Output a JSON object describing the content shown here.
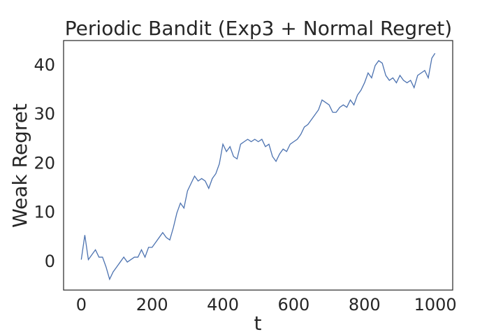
{
  "chart_data": {
    "type": "line",
    "title": "Periodic Bandit (Exp3 + Normal Regret)",
    "x_label": "t",
    "y_label": "Weak Regret",
    "x": [
      0,
      10,
      20,
      30,
      40,
      50,
      60,
      70,
      80,
      90,
      100,
      110,
      120,
      130,
      140,
      150,
      160,
      170,
      180,
      190,
      200,
      210,
      220,
      230,
      240,
      250,
      260,
      270,
      280,
      290,
      300,
      310,
      320,
      330,
      340,
      350,
      360,
      370,
      380,
      390,
      400,
      410,
      420,
      430,
      440,
      450,
      460,
      470,
      480,
      490,
      500,
      510,
      520,
      530,
      540,
      550,
      560,
      570,
      580,
      590,
      600,
      610,
      620,
      630,
      640,
      650,
      660,
      670,
      680,
      690,
      700,
      710,
      720,
      730,
      740,
      750,
      760,
      770,
      780,
      790,
      800,
      810,
      820,
      830,
      840,
      850,
      860,
      870,
      880,
      890,
      900,
      910,
      920,
      930,
      940,
      950,
      960,
      970,
      980,
      990,
      999
    ],
    "series": [
      {
        "name": "Weak Regret",
        "color": "#4c72b0",
        "values": [
          0.5,
          5.5,
          0.5,
          1.5,
          2.5,
          1,
          1,
          -1,
          -3.5,
          -2,
          -1,
          0,
          1,
          0,
          0.5,
          1,
          1,
          2.5,
          1,
          3,
          3,
          4,
          5,
          6,
          5,
          4.5,
          7,
          10,
          12,
          11,
          14.5,
          16,
          17.5,
          16.5,
          17,
          16.5,
          15,
          17,
          18,
          20,
          24,
          22.5,
          23.5,
          21.5,
          21,
          24,
          24.5,
          25,
          24.5,
          25,
          24.5,
          25,
          23.5,
          24,
          21.5,
          20.5,
          22,
          23,
          22.5,
          24,
          24.5,
          25,
          26,
          27.5,
          28,
          29,
          30,
          31,
          33,
          32.5,
          32,
          30.5,
          30.5,
          31.5,
          32,
          31.5,
          33,
          32,
          34,
          35,
          36.5,
          38.5,
          37.5,
          40,
          41,
          40.5,
          38,
          37,
          37.5,
          36.5,
          38,
          37,
          36.5,
          37,
          35.5,
          38,
          38.5,
          39,
          37.5,
          41.5,
          42.5
        ]
      }
    ],
    "xlim": [
      -50,
      1049
    ],
    "ylim": [
      -5.7,
      45.1
    ],
    "xticks": [
      0,
      200,
      400,
      600,
      800,
      1000
    ],
    "yticks": [
      0,
      10,
      20,
      30,
      40
    ],
    "grid": false
  }
}
